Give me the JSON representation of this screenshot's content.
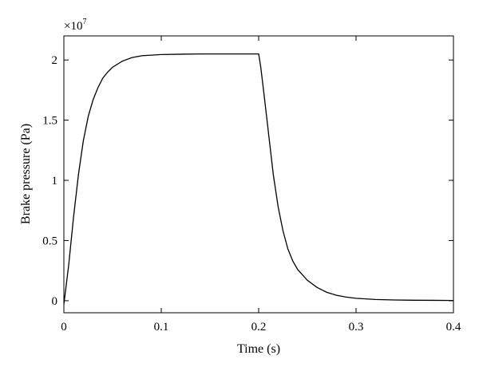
{
  "chart_data": {
    "type": "line",
    "title": "",
    "xlabel": "Time (s)",
    "ylabel": "Brake pressure (Pa)",
    "xlim": [
      0,
      0.4
    ],
    "ylim": [
      -0.1,
      2.2
    ],
    "y_scale_multiplier": {
      "base": "×10",
      "exponent": "7"
    },
    "grid": false,
    "legend": "none",
    "x_ticks": [
      {
        "value": 0,
        "label": "0"
      },
      {
        "value": 0.1,
        "label": "0.1"
      },
      {
        "value": 0.2,
        "label": "0.2"
      },
      {
        "value": 0.3,
        "label": "0.3"
      },
      {
        "value": 0.4,
        "label": "0.4"
      }
    ],
    "y_ticks": [
      {
        "value": 0,
        "label": "0"
      },
      {
        "value": 0.5,
        "label": "0.5"
      },
      {
        "value": 1,
        "label": "1"
      },
      {
        "value": 1.5,
        "label": "1.5"
      },
      {
        "value": 2,
        "label": "2"
      }
    ],
    "series": [
      {
        "color": "#000000",
        "x": [
          0,
          0.005,
          0.01,
          0.015,
          0.02,
          0.025,
          0.03,
          0.035,
          0.04,
          0.045,
          0.05,
          0.06,
          0.07,
          0.08,
          0.09,
          0.1,
          0.12,
          0.14,
          0.16,
          0.18,
          0.2,
          0.202,
          0.205,
          0.21,
          0.215,
          0.22,
          0.225,
          0.23,
          0.235,
          0.24,
          0.25,
          0.26,
          0.27,
          0.28,
          0.29,
          0.3,
          0.32,
          0.34,
          0.36,
          0.38,
          0.4
        ],
        "y": [
          -0.03,
          0.3,
          0.7,
          1.05,
          1.33,
          1.53,
          1.67,
          1.77,
          1.85,
          1.9,
          1.94,
          1.99,
          2.02,
          2.035,
          2.04,
          2.045,
          2.048,
          2.05,
          2.05,
          2.05,
          2.05,
          1.95,
          1.75,
          1.4,
          1.05,
          0.78,
          0.58,
          0.43,
          0.33,
          0.26,
          0.17,
          0.11,
          0.07,
          0.045,
          0.03,
          0.02,
          0.01,
          0.006,
          0.004,
          0.003,
          0.002
        ]
      }
    ]
  }
}
